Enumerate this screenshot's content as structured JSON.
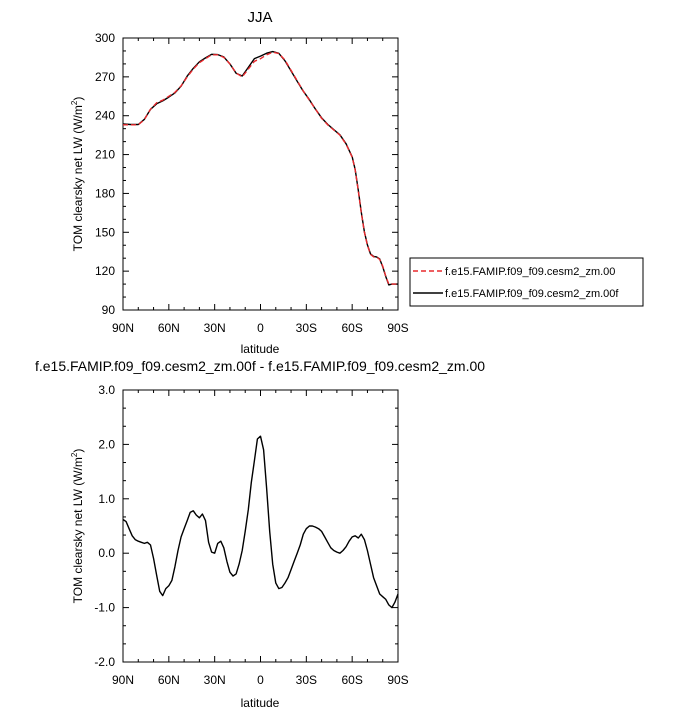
{
  "chart_data": [
    {
      "type": "line",
      "title": "JJA",
      "xlabel": "latitude",
      "ylabel": "TOM clearsky net LW (W/m",
      "ylabel_sup": "2",
      "ylabel_end": ")",
      "xlim": [
        90,
        -90
      ],
      "ylim": [
        90,
        300
      ],
      "xticks": [
        {
          "value": 90,
          "label": "90N"
        },
        {
          "value": 60,
          "label": "60N"
        },
        {
          "value": 30,
          "label": "30N"
        },
        {
          "value": 0,
          "label": "0"
        },
        {
          "value": -30,
          "label": "30S"
        },
        {
          "value": -60,
          "label": "60S"
        },
        {
          "value": -90,
          "label": "90S"
        }
      ],
      "yticks": [
        {
          "value": 300,
          "label": "300"
        },
        {
          "value": 270,
          "label": "270"
        },
        {
          "value": 240,
          "label": "240"
        },
        {
          "value": 210,
          "label": "210"
        },
        {
          "value": 180,
          "label": "180"
        },
        {
          "value": 150,
          "label": "150"
        },
        {
          "value": 120,
          "label": "120"
        },
        {
          "value": 90,
          "label": "90"
        }
      ],
      "legend_position": "right",
      "series": [
        {
          "name": "f.e15.FAMIP.f09_f09.cesm2_zm.00",
          "color": "#e8292d",
          "dash": "dashed",
          "x": [
            90,
            85,
            80,
            76,
            72,
            68,
            64,
            60,
            56,
            52,
            48,
            44,
            40,
            36,
            32,
            28,
            24,
            20,
            16,
            12,
            8,
            4,
            0,
            -4,
            -8,
            -12,
            -16,
            -20,
            -24,
            -28,
            -32,
            -36,
            -40,
            -44,
            -48,
            -52,
            -56,
            -60,
            -62,
            -64,
            -66,
            -68,
            -70,
            -72,
            -74,
            -76,
            -78,
            -80,
            -82,
            -84,
            -86,
            -88,
            -90
          ],
          "y": [
            233,
            233,
            233,
            237,
            245,
            250,
            252,
            255,
            258,
            263,
            270,
            276,
            281,
            284,
            287,
            287,
            285,
            280,
            273,
            270,
            276,
            282,
            284,
            287,
            289,
            288,
            283,
            275,
            267,
            259,
            252,
            245,
            238,
            233,
            229,
            225,
            218,
            208,
            198,
            182,
            165,
            150,
            140,
            133,
            131,
            131,
            129,
            124,
            116,
            110,
            110,
            110,
            110
          ]
        },
        {
          "name": "f.e15.FAMIP.f09_f09.cesm2_zm.00f",
          "color": "#000000",
          "dash": "solid",
          "x": [
            90,
            85,
            80,
            76,
            72,
            68,
            64,
            60,
            56,
            52,
            48,
            44,
            40,
            36,
            32,
            28,
            24,
            20,
            16,
            12,
            8,
            4,
            0,
            -4,
            -8,
            -12,
            -16,
            -20,
            -24,
            -28,
            -32,
            -36,
            -40,
            -44,
            -48,
            -52,
            -56,
            -60,
            -62,
            -64,
            -66,
            -68,
            -70,
            -72,
            -74,
            -76,
            -78,
            -80,
            -82,
            -84,
            -86,
            -88,
            -90
          ],
          "y": [
            233.6,
            233.2,
            233.2,
            237.2,
            244.9,
            249.2,
            251.4,
            254.4,
            257.6,
            262.8,
            270.6,
            276.6,
            281.6,
            284.6,
            287.4,
            287.2,
            285.4,
            280,
            272.8,
            270.7,
            277.3,
            284.1,
            286,
            288.3,
            289.5,
            288.2,
            282.5,
            274.5,
            266.6,
            258.9,
            252.4,
            245,
            238.4,
            233.3,
            229.3,
            225.3,
            218.3,
            208.2,
            198.3,
            182.4,
            165.4,
            150.3,
            140.3,
            133.3,
            131.4,
            131,
            129.4,
            123.4,
            115.8,
            109.4,
            110,
            110,
            110
          ]
        }
      ]
    },
    {
      "type": "line",
      "title": "f.e15.FAMIP.f09_f09.cesm2_zm.00f - f.e15.FAMIP.f09_f09.cesm2_zm.00",
      "xlabel": "latitude",
      "ylabel": "TOM clearsky net LW (W/m",
      "ylabel_sup": "2",
      "ylabel_end": ")",
      "xlim": [
        90,
        -90
      ],
      "ylim": [
        -2.0,
        3.0
      ],
      "xticks": [
        {
          "value": 90,
          "label": "90N"
        },
        {
          "value": 60,
          "label": "60N"
        },
        {
          "value": 30,
          "label": "30N"
        },
        {
          "value": 0,
          "label": "0"
        },
        {
          "value": -30,
          "label": "30S"
        },
        {
          "value": -60,
          "label": "60S"
        },
        {
          "value": -90,
          "label": "90S"
        }
      ],
      "yticks": [
        {
          "value": 3.0,
          "label": "3.0"
        },
        {
          "value": 2.0,
          "label": "2.0"
        },
        {
          "value": 1.0,
          "label": "1.0"
        },
        {
          "value": 0.0,
          "label": "0.0"
        },
        {
          "value": -1.0,
          "label": "-1.0"
        },
        {
          "value": -2.0,
          "label": "-2.0"
        }
      ],
      "series": [
        {
          "color": "#000000",
          "dash": "solid",
          "x": [
            90,
            88,
            86,
            84,
            82,
            80,
            78,
            76,
            74,
            72,
            70,
            68,
            66,
            64,
            62,
            60,
            58,
            56,
            54,
            52,
            50,
            48,
            46,
            44,
            42,
            40,
            38,
            36,
            34,
            32,
            30,
            28,
            26,
            24,
            22,
            20,
            18,
            16,
            14,
            12,
            10,
            8,
            6,
            4,
            2,
            0,
            -2,
            -4,
            -6,
            -8,
            -10,
            -12,
            -14,
            -16,
            -18,
            -20,
            -22,
            -24,
            -26,
            -28,
            -30,
            -32,
            -34,
            -36,
            -38,
            -40,
            -42,
            -44,
            -46,
            -48,
            -50,
            -52,
            -54,
            -56,
            -58,
            -60,
            -62,
            -64,
            -66,
            -68,
            -70,
            -72,
            -74,
            -76,
            -78,
            -80,
            -82,
            -84,
            -86,
            -88,
            -90
          ],
          "y": [
            0.62,
            0.58,
            0.45,
            0.32,
            0.25,
            0.22,
            0.2,
            0.18,
            0.2,
            0.15,
            -0.1,
            -0.4,
            -0.7,
            -0.78,
            -0.65,
            -0.6,
            -0.5,
            -0.25,
            0.05,
            0.3,
            0.45,
            0.6,
            0.75,
            0.78,
            0.7,
            0.65,
            0.72,
            0.6,
            0.2,
            0.02,
            0.0,
            0.18,
            0.22,
            0.1,
            -0.15,
            -0.35,
            -0.42,
            -0.38,
            -0.2,
            0.05,
            0.4,
            0.8,
            1.3,
            1.7,
            2.1,
            2.15,
            1.9,
            1.2,
            0.4,
            -0.2,
            -0.55,
            -0.65,
            -0.63,
            -0.55,
            -0.45,
            -0.3,
            -0.15,
            0.0,
            0.15,
            0.35,
            0.45,
            0.5,
            0.5,
            0.48,
            0.45,
            0.4,
            0.3,
            0.2,
            0.1,
            0.05,
            0.02,
            0.0,
            0.05,
            0.12,
            0.22,
            0.3,
            0.32,
            0.28,
            0.35,
            0.25,
            0.05,
            -0.2,
            -0.45,
            -0.6,
            -0.75,
            -0.8,
            -0.85,
            -0.95,
            -1.0,
            -0.9,
            -0.75
          ]
        }
      ]
    }
  ]
}
